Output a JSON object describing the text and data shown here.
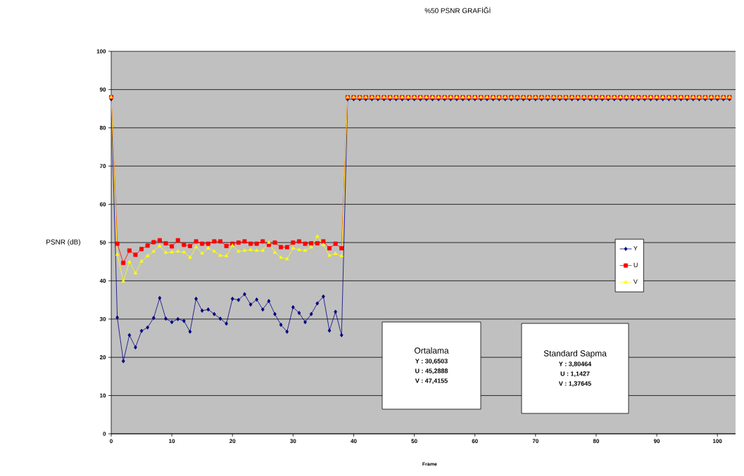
{
  "chart_data": {
    "type": "line",
    "title": "%50 PSNR GRAFİĞİ",
    "xlabel": "Frame",
    "ylabel": "PSNR (dB)",
    "x": [
      0,
      1,
      2,
      3,
      4,
      5,
      6,
      7,
      8,
      9,
      10,
      11,
      12,
      13,
      14,
      15,
      16,
      17,
      18,
      19,
      20,
      21,
      22,
      23,
      24,
      25,
      26,
      27,
      28,
      29,
      30,
      31,
      32,
      33,
      34,
      35,
      36,
      37,
      38,
      39,
      40,
      41,
      42,
      43,
      44,
      45,
      46,
      47,
      48,
      49,
      50,
      51,
      52,
      53,
      54,
      55,
      56,
      57,
      58,
      59,
      60,
      61,
      62,
      63,
      64,
      65,
      66,
      67,
      68,
      69,
      70,
      71,
      72,
      73,
      74,
      75,
      76,
      77,
      78,
      79,
      80,
      81,
      82,
      83,
      84,
      85,
      86,
      87,
      88,
      89,
      90,
      91,
      92,
      93,
      94,
      95,
      96,
      97,
      98,
      99,
      100,
      101,
      102
    ],
    "series": [
      {
        "name": "Y",
        "color": "#000080",
        "marker": "diamond",
        "values": [
          87.5,
          30.4,
          19,
          25.8,
          22.6,
          26.9,
          27.8,
          30.3,
          35.5,
          30.1,
          29.2,
          30,
          29.5,
          26.7,
          35.3,
          32.2,
          32.5,
          31.3,
          30.1,
          28.8,
          35.3,
          35,
          36.5,
          33.8,
          35.1,
          32.5,
          34.7,
          31.3,
          28.5,
          26.7,
          33.1,
          31.6,
          29.2,
          31.3,
          34.1,
          35.9,
          27,
          31.9,
          25.8,
          87.5,
          87.5,
          87.5,
          87.5,
          87.5,
          87.5,
          87.5,
          87.5,
          87.5,
          87.5,
          87.5,
          87.5,
          87.5,
          87.5,
          87.5,
          87.5,
          87.5,
          87.5,
          87.5,
          87.5,
          87.5,
          87.5,
          87.5,
          87.5,
          87.5,
          87.5,
          87.5,
          87.5,
          87.5,
          87.5,
          87.5,
          87.5,
          87.5,
          87.5,
          87.5,
          87.5,
          87.5,
          87.5,
          87.5,
          87.5,
          87.5,
          87.5,
          87.5,
          87.5,
          87.5,
          87.5,
          87.5,
          87.5,
          87.5,
          87.5,
          87.5,
          87.5,
          87.5,
          87.5,
          87.5,
          87.5,
          87.5,
          87.5,
          87.5,
          87.5,
          87.5,
          87.5,
          87.5,
          87.5
        ]
      },
      {
        "name": "U",
        "color": "#ff0000",
        "marker": "square",
        "values": [
          88,
          49.7,
          44.7,
          47.9,
          46.8,
          48.3,
          49.2,
          50.1,
          50.6,
          49.8,
          49,
          50.6,
          49.4,
          49.1,
          50.3,
          49.7,
          49.7,
          50.3,
          50.3,
          49.1,
          49.7,
          50,
          50.3,
          49.7,
          49.7,
          50.3,
          49.4,
          50,
          48.8,
          48.8,
          50,
          50.3,
          49.7,
          49.8,
          49.8,
          50.3,
          48.5,
          49.7,
          48.5,
          88,
          88,
          88,
          88,
          88,
          88,
          88,
          88,
          88,
          88,
          88,
          88,
          88,
          88,
          88,
          88,
          88,
          88,
          88,
          88,
          88,
          88,
          88,
          88,
          88,
          88,
          88,
          88,
          88,
          88,
          88,
          88,
          88,
          88,
          88,
          88,
          88,
          88,
          88,
          88,
          88,
          88,
          88,
          88,
          88,
          88,
          88,
          88,
          88,
          88,
          88,
          88,
          88,
          88,
          88,
          88,
          88,
          88,
          88,
          88,
          88,
          88,
          88,
          88
        ]
      },
      {
        "name": "V",
        "color": "#ffff00",
        "marker": "triangle",
        "values": [
          88,
          46.9,
          39.9,
          44.9,
          42,
          45.1,
          46.5,
          47.7,
          49.1,
          47.4,
          47.5,
          47.7,
          47.5,
          46.1,
          48.8,
          47.2,
          48.5,
          47.7,
          46.6,
          46.5,
          49.2,
          47.7,
          47.9,
          48.1,
          47.9,
          47.9,
          50,
          47.4,
          46.1,
          45.7,
          48.5,
          48.1,
          47.9,
          48.8,
          51.6,
          49.4,
          46.6,
          47.1,
          46.5,
          88,
          88,
          88,
          88,
          88,
          88,
          88,
          88,
          88,
          88,
          88,
          88,
          88,
          88,
          88,
          88,
          88,
          88,
          88,
          88,
          88,
          88,
          88,
          88,
          88,
          88,
          88,
          88,
          88,
          88,
          88,
          88,
          88,
          88,
          88,
          88,
          88,
          88,
          88,
          88,
          88,
          88,
          88,
          88,
          88,
          88,
          88,
          88,
          88,
          88,
          88,
          88,
          88,
          88,
          88,
          88,
          88,
          88,
          88,
          88,
          88,
          88,
          88,
          88
        ]
      }
    ],
    "xlim": [
      0,
      103
    ],
    "xticks": [
      0,
      10,
      20,
      30,
      40,
      50,
      60,
      70,
      80,
      90,
      100
    ],
    "ylim": [
      0,
      100
    ],
    "yticks": [
      0,
      10,
      20,
      30,
      40,
      50,
      60,
      70,
      80,
      90,
      100
    ],
    "grid": "y",
    "legend": "right",
    "line_style": "solid",
    "annotations": [
      "Ortalama",
      "Y : 30,6503",
      "U : 45,2888",
      "V : 47,4155",
      "Standard Sapma",
      "Y : 3,80464",
      "U : 1,1427",
      "V : 1,37645"
    ]
  }
}
